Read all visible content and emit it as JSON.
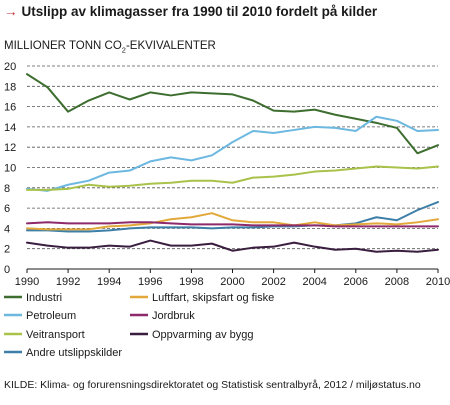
{
  "header": {
    "title": "Utslipp av klimagasser fra 1990 til 2010 fordelt på kilder",
    "arrow": "→"
  },
  "footer": {
    "source": "KILDE: Klima- og forurensningsdirektoratet og Statistisk sentralbyrå, 2012 / miljøstatus.no"
  },
  "colors": {
    "Industri": "#3d6e2f",
    "Luftfart, skipsfart og fiske": "#e3a83a",
    "Petroleum": "#6cb8e0",
    "Jordbruk": "#8e2a6b",
    "Veitransport": "#a9c24a",
    "Oppvarming av bygg": "#3a1e3f",
    "Andre utslippskilder": "#3e7fa8",
    "arrow": "#c0272d"
  },
  "chart_data": {
    "type": "line",
    "title": "Utslipp av klimagasser fra 1990 til 2010 fordelt på kilder",
    "ylabel_main": "MILLIONER TONN CO",
    "ylabel_sub": "2",
    "ylabel_suffix": "-EKVIVALENTER",
    "xlim": [
      1990,
      2010
    ],
    "ylim": [
      0,
      20
    ],
    "xticks": [
      1990,
      1992,
      1994,
      1996,
      1998,
      2000,
      2002,
      2004,
      2006,
      2008,
      2010
    ],
    "yticks": [
      0,
      2,
      4,
      6,
      8,
      10,
      12,
      14,
      16,
      18,
      20
    ],
    "grid": "horizontal-dashed",
    "legend_position": "bottom",
    "x": [
      1990,
      1991,
      1992,
      1993,
      1994,
      1995,
      1996,
      1997,
      1998,
      1999,
      2000,
      2001,
      2002,
      2003,
      2004,
      2005,
      2006,
      2007,
      2008,
      2009,
      2010
    ],
    "series": [
      {
        "name": "Industri",
        "values": [
          19.2,
          17.9,
          15.5,
          16.6,
          17.4,
          16.7,
          17.4,
          17.1,
          17.4,
          17.3,
          17.2,
          16.6,
          15.6,
          15.5,
          15.7,
          15.2,
          14.8,
          14.4,
          13.9,
          11.4,
          12.2
        ]
      },
      {
        "name": "Petroleum",
        "values": [
          7.9,
          7.7,
          8.3,
          8.7,
          9.5,
          9.7,
          10.6,
          11.0,
          10.7,
          11.2,
          12.5,
          13.6,
          13.4,
          13.7,
          14.0,
          13.9,
          13.6,
          15.0,
          14.6,
          13.6,
          13.7
        ]
      },
      {
        "name": "Veitransport",
        "values": [
          7.8,
          7.8,
          7.9,
          8.3,
          8.1,
          8.2,
          8.4,
          8.5,
          8.7,
          8.7,
          8.5,
          9.0,
          9.1,
          9.3,
          9.6,
          9.7,
          9.9,
          10.1,
          10.0,
          9.9,
          10.1
        ]
      },
      {
        "name": "Andre utslippskilder",
        "values": [
          3.8,
          3.8,
          3.7,
          3.7,
          3.8,
          4.0,
          4.1,
          4.1,
          4.1,
          4.0,
          4.1,
          4.1,
          4.2,
          4.2,
          4.3,
          4.3,
          4.5,
          5.1,
          4.8,
          5.8,
          6.6
        ]
      },
      {
        "name": "Luftfart, skipsfart og fiske",
        "values": [
          4.0,
          3.9,
          3.9,
          3.9,
          4.2,
          4.3,
          4.5,
          4.9,
          5.1,
          5.5,
          4.8,
          4.6,
          4.6,
          4.3,
          4.6,
          4.3,
          4.4,
          4.5,
          4.4,
          4.6,
          4.9
        ]
      },
      {
        "name": "Jordbruk",
        "values": [
          4.5,
          4.6,
          4.5,
          4.5,
          4.5,
          4.6,
          4.6,
          4.5,
          4.4,
          4.4,
          4.4,
          4.3,
          4.3,
          4.3,
          4.3,
          4.2,
          4.2,
          4.2,
          4.2,
          4.2,
          4.2
        ]
      },
      {
        "name": "Oppvarming av bygg",
        "values": [
          2.6,
          2.3,
          2.1,
          2.1,
          2.3,
          2.2,
          2.8,
          2.3,
          2.3,
          2.5,
          1.8,
          2.1,
          2.2,
          2.6,
          2.2,
          1.9,
          2.0,
          1.7,
          1.8,
          1.7,
          1.9
        ]
      }
    ],
    "legend": [
      "Industri",
      "Luftfart, skipsfart og fiske",
      "Petroleum",
      "Jordbruk",
      "Veitransport",
      "Oppvarming av bygg",
      "Andre utslippskilder"
    ]
  }
}
